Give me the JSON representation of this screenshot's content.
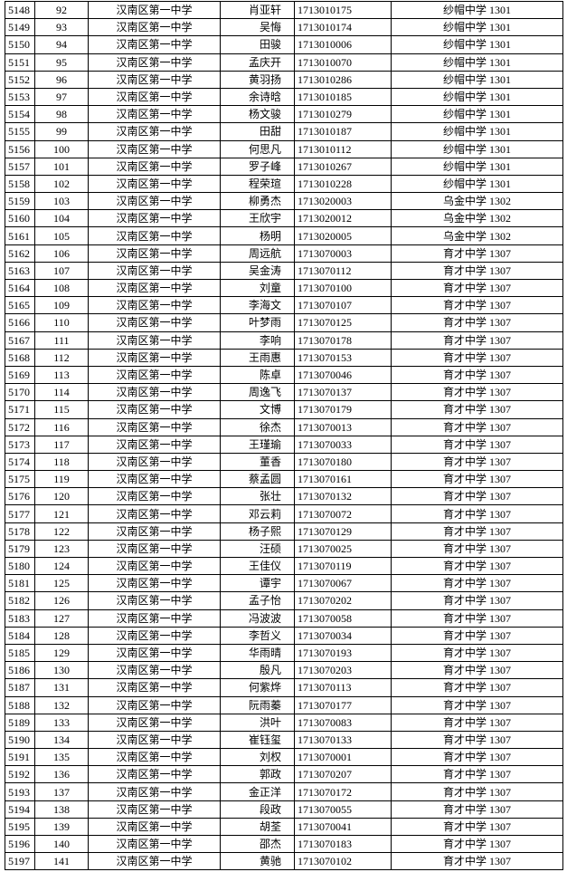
{
  "table": {
    "rows": [
      [
        "5148",
        "92",
        "汉南区第一中学",
        "肖亚轩",
        "1713010175",
        "纱帽中学 1301"
      ],
      [
        "5149",
        "93",
        "汉南区第一中学",
        "吴悔",
        "1713010174",
        "纱帽中学 1301"
      ],
      [
        "5150",
        "94",
        "汉南区第一中学",
        "田骏",
        "1713010006",
        "纱帽中学 1301"
      ],
      [
        "5151",
        "95",
        "汉南区第一中学",
        "孟庆开",
        "1713010070",
        "纱帽中学 1301"
      ],
      [
        "5152",
        "96",
        "汉南区第一中学",
        "黄羽扬",
        "1713010286",
        "纱帽中学 1301"
      ],
      [
        "5153",
        "97",
        "汉南区第一中学",
        "余诗晗",
        "1713010185",
        "纱帽中学 1301"
      ],
      [
        "5154",
        "98",
        "汉南区第一中学",
        "杨文骏",
        "1713010279",
        "纱帽中学 1301"
      ],
      [
        "5155",
        "99",
        "汉南区第一中学",
        "田甜",
        "1713010187",
        "纱帽中学 1301"
      ],
      [
        "5156",
        "100",
        "汉南区第一中学",
        "何思凡",
        "1713010112",
        "纱帽中学 1301"
      ],
      [
        "5157",
        "101",
        "汉南区第一中学",
        "罗子峰",
        "1713010267",
        "纱帽中学 1301"
      ],
      [
        "5158",
        "102",
        "汉南区第一中学",
        "程荣瑄",
        "1713010228",
        "纱帽中学 1301"
      ],
      [
        "5159",
        "103",
        "汉南区第一中学",
        "柳勇杰",
        "1713020003",
        "乌金中学 1302"
      ],
      [
        "5160",
        "104",
        "汉南区第一中学",
        "王欣宇",
        "1713020012",
        "乌金中学 1302"
      ],
      [
        "5161",
        "105",
        "汉南区第一中学",
        "杨明",
        "1713020005",
        "乌金中学 1302"
      ],
      [
        "5162",
        "106",
        "汉南区第一中学",
        "周远航",
        "1713070003",
        "育才中学 1307"
      ],
      [
        "5163",
        "107",
        "汉南区第一中学",
        "吴金涛",
        "1713070112",
        "育才中学 1307"
      ],
      [
        "5164",
        "108",
        "汉南区第一中学",
        "刘童",
        "1713070100",
        "育才中学 1307"
      ],
      [
        "5165",
        "109",
        "汉南区第一中学",
        "李海文",
        "1713070107",
        "育才中学 1307"
      ],
      [
        "5166",
        "110",
        "汉南区第一中学",
        "叶梦雨",
        "1713070125",
        "育才中学 1307"
      ],
      [
        "5167",
        "111",
        "汉南区第一中学",
        "李响",
        "1713070178",
        "育才中学 1307"
      ],
      [
        "5168",
        "112",
        "汉南区第一中学",
        "王雨惠",
        "1713070153",
        "育才中学 1307"
      ],
      [
        "5169",
        "113",
        "汉南区第一中学",
        "陈卓",
        "1713070046",
        "育才中学 1307"
      ],
      [
        "5170",
        "114",
        "汉南区第一中学",
        "周逸飞",
        "1713070137",
        "育才中学 1307"
      ],
      [
        "5171",
        "115",
        "汉南区第一中学",
        "文博",
        "1713070179",
        "育才中学 1307"
      ],
      [
        "5172",
        "116",
        "汉南区第一中学",
        "徐杰",
        "1713070013",
        "育才中学 1307"
      ],
      [
        "5173",
        "117",
        "汉南区第一中学",
        "王瑾瑜",
        "1713070033",
        "育才中学 1307"
      ],
      [
        "5174",
        "118",
        "汉南区第一中学",
        "董香",
        "1713070180",
        "育才中学 1307"
      ],
      [
        "5175",
        "119",
        "汉南区第一中学",
        "蔡孟圆",
        "1713070161",
        "育才中学 1307"
      ],
      [
        "5176",
        "120",
        "汉南区第一中学",
        "张壮",
        "1713070132",
        "育才中学 1307"
      ],
      [
        "5177",
        "121",
        "汉南区第一中学",
        "邓云莉",
        "1713070072",
        "育才中学 1307"
      ],
      [
        "5178",
        "122",
        "汉南区第一中学",
        "杨子熙",
        "1713070129",
        "育才中学 1307"
      ],
      [
        "5179",
        "123",
        "汉南区第一中学",
        "汪硕",
        "1713070025",
        "育才中学 1307"
      ],
      [
        "5180",
        "124",
        "汉南区第一中学",
        "王佳仪",
        "1713070119",
        "育才中学 1307"
      ],
      [
        "5181",
        "125",
        "汉南区第一中学",
        "谭宇",
        "1713070067",
        "育才中学 1307"
      ],
      [
        "5182",
        "126",
        "汉南区第一中学",
        "孟子怡",
        "1713070202",
        "育才中学 1307"
      ],
      [
        "5183",
        "127",
        "汉南区第一中学",
        "冯波波",
        "1713070058",
        "育才中学 1307"
      ],
      [
        "5184",
        "128",
        "汉南区第一中学",
        "李哲义",
        "1713070034",
        "育才中学 1307"
      ],
      [
        "5185",
        "129",
        "汉南区第一中学",
        "华雨晴",
        "1713070193",
        "育才中学 1307"
      ],
      [
        "5186",
        "130",
        "汉南区第一中学",
        "殷凡",
        "1713070203",
        "育才中学 1307"
      ],
      [
        "5187",
        "131",
        "汉南区第一中学",
        "何紫烨",
        "1713070113",
        "育才中学 1307"
      ],
      [
        "5188",
        "132",
        "汉南区第一中学",
        "阮雨蓁",
        "1713070177",
        "育才中学 1307"
      ],
      [
        "5189",
        "133",
        "汉南区第一中学",
        "洪叶",
        "1713070083",
        "育才中学 1307"
      ],
      [
        "5190",
        "134",
        "汉南区第一中学",
        "崔钰玺",
        "1713070133",
        "育才中学 1307"
      ],
      [
        "5191",
        "135",
        "汉南区第一中学",
        "刘权",
        "1713070001",
        "育才中学 1307"
      ],
      [
        "5192",
        "136",
        "汉南区第一中学",
        "郭政",
        "1713070207",
        "育才中学 1307"
      ],
      [
        "5193",
        "137",
        "汉南区第一中学",
        "金正洋",
        "1713070172",
        "育才中学 1307"
      ],
      [
        "5194",
        "138",
        "汉南区第一中学",
        "段政",
        "1713070055",
        "育才中学 1307"
      ],
      [
        "5195",
        "139",
        "汉南区第一中学",
        "胡荃",
        "1713070041",
        "育才中学 1307"
      ],
      [
        "5196",
        "140",
        "汉南区第一中学",
        "邵杰",
        "1713070183",
        "育才中学 1307"
      ],
      [
        "5197",
        "141",
        "汉南区第一中学",
        "黄驰",
        "1713070102",
        "育才中学 1307"
      ]
    ]
  }
}
